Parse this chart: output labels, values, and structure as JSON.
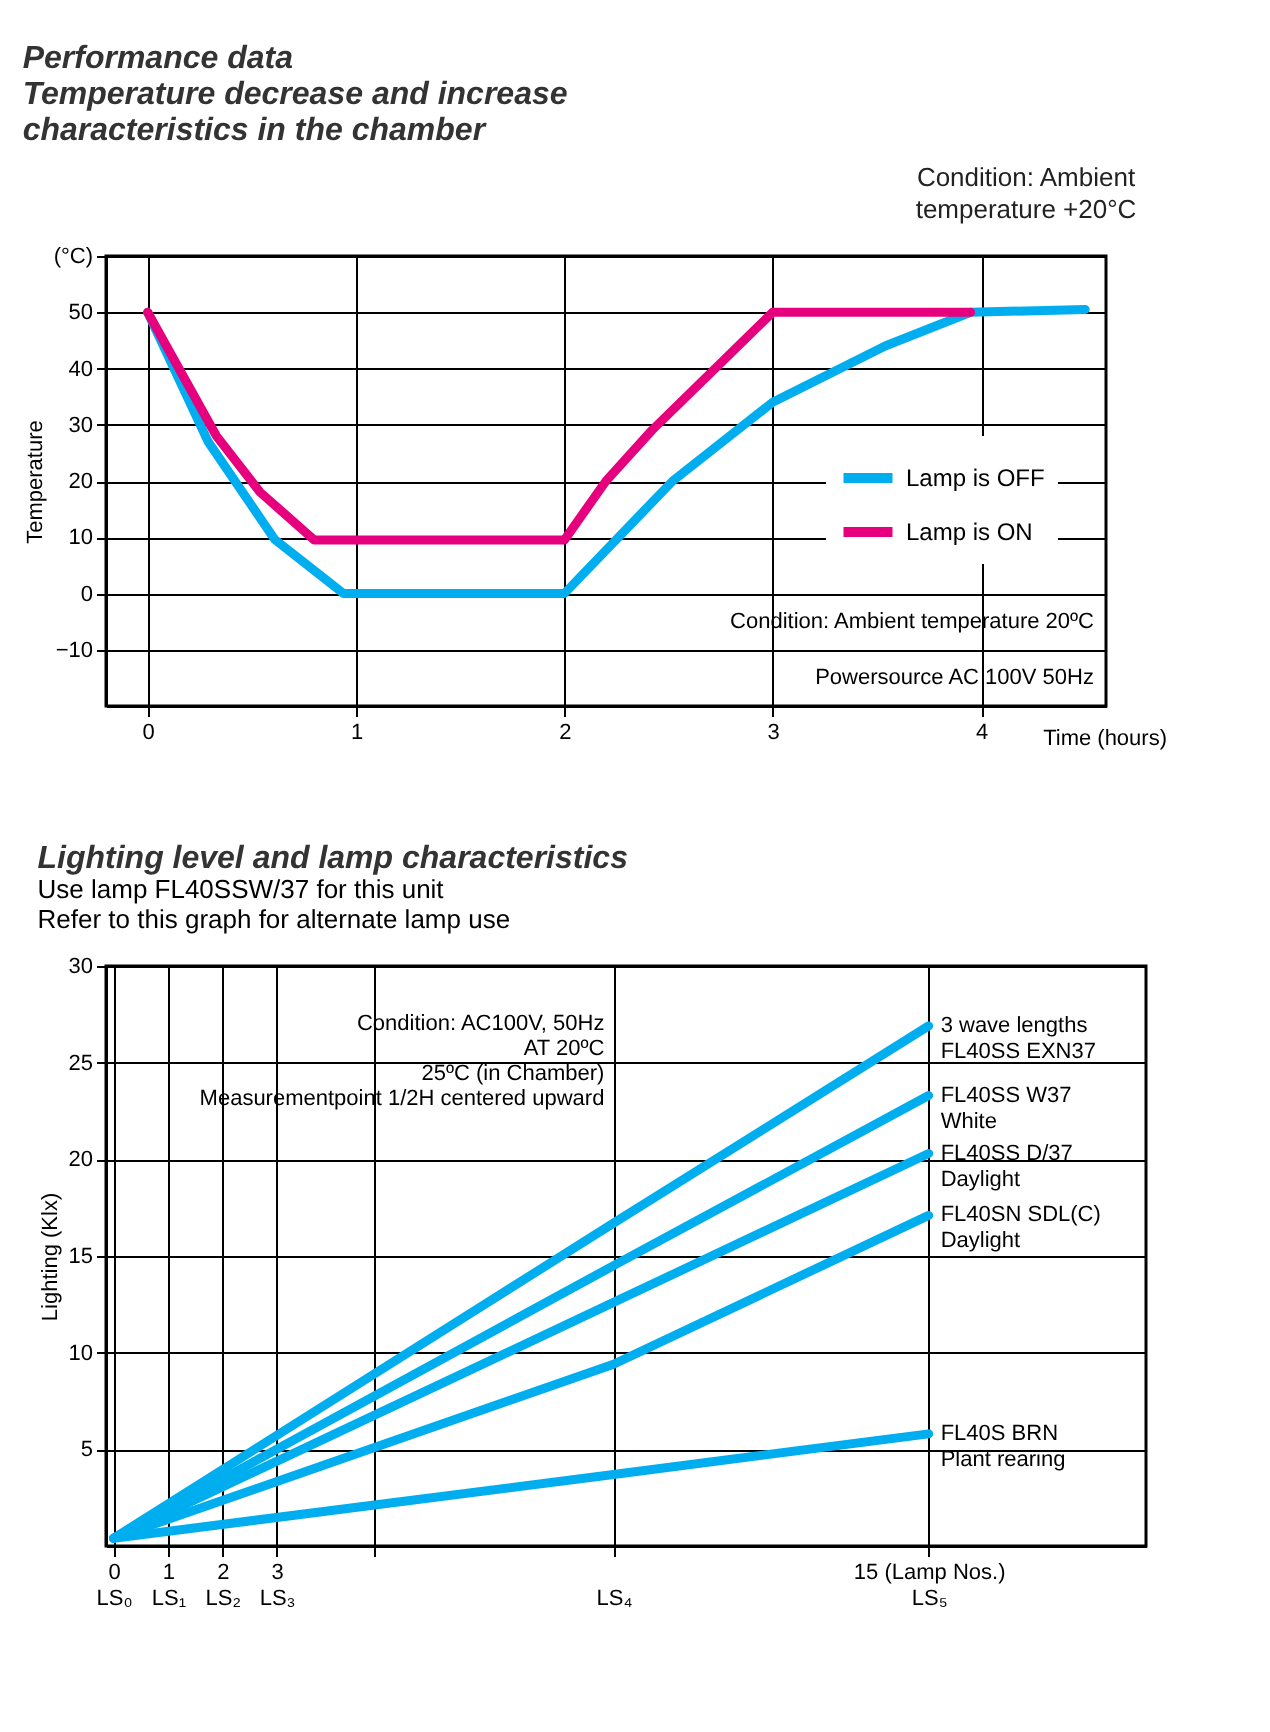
{
  "chart_data": [
    {
      "type": "line",
      "title": "Performance data\nTemperature decrease and increase\ncharacteristics in the chamber",
      "subtitle": "Condition: Ambient\ntemperature +20°C",
      "xlabel": "Time (hours)",
      "ylabel": "Temperature",
      "annotations": [
        "Condition: Ambient temperature 20ºC",
        "Powersource AC 100V 50Hz"
      ],
      "xlim": [
        -0.2,
        4.6
      ],
      "xticks": [
        0,
        1,
        2,
        3,
        4
      ],
      "ylim": [
        -20,
        60
      ],
      "yticks": [
        -10,
        0,
        10,
        20,
        30,
        40,
        50,
        {
          "value": 60,
          "label": "(°C)"
        }
      ],
      "grid": true,
      "legend": "right",
      "marker": "none",
      "line_style": "solid",
      "series": [
        {
          "name": "Lamp is OFF",
          "color": "#00aeef",
          "x": [
            0,
            0.29,
            0.61,
            0.94,
            2,
            2.52,
            3,
            3.54,
            3.95,
            4.5
          ],
          "values": [
            50,
            27,
            9.6,
            0,
            0,
            20,
            34,
            44,
            50,
            50.5
          ]
        },
        {
          "name": "Lamp is ON",
          "color": "#e6007e",
          "x": [
            0,
            0.33,
            0.54,
            0.8,
            2,
            2.2,
            2.42,
            3,
            3.95
          ],
          "values": [
            50,
            28,
            18,
            9.5,
            9.5,
            20,
            29,
            50,
            50
          ]
        }
      ]
    },
    {
      "type": "line",
      "title": "Lighting level and lamp characteristics",
      "subtitle": "Use lamp FL40SSW/37 for this unit\nRefer to this graph for alternate lamp use",
      "ylabel": "Lighting (Klx)",
      "annotations": [
        "Condition: AC100V, 50Hz\nAT 20ºC\n25ºC (in Chamber)\nMeasurementpoint 1/2H centered upward"
      ],
      "xlim": [
        -0.14,
        19
      ],
      "xticks": [
        {
          "value": 0,
          "label": "0\nLS₀"
        },
        {
          "value": 1,
          "label": "1\nLS₁"
        },
        {
          "value": 2,
          "label": "2\nLS₂"
        },
        {
          "value": 3,
          "label": "3\nLS₃"
        },
        {
          "value": 4.8,
          "label": null
        },
        {
          "value": 9.2,
          "label": "\nLS₄"
        },
        {
          "value": 15,
          "label": "15 (Lamp Nos.)\nLS₅"
        }
      ],
      "ylim": [
        0,
        30
      ],
      "yticks": [
        5,
        10,
        15,
        20,
        25,
        30
      ],
      "grid": true,
      "legend": false,
      "marker": "none",
      "line_style": "solid",
      "series": [
        {
          "name": "3 wave lengths\nFL40SS EXN37",
          "color": "#00aeef",
          "x": [
            0,
            9.2,
            15
          ],
          "values": [
            0.4,
            16.7,
            26.9
          ]
        },
        {
          "name": "FL40SS W37\nWhite",
          "color": "#00aeef",
          "x": [
            0,
            9.2,
            15
          ],
          "values": [
            0.4,
            14.5,
            23.3
          ]
        },
        {
          "name": "FL40SS D/37\nDaylight",
          "color": "#00aeef",
          "x": [
            0,
            9.2,
            15
          ],
          "values": [
            0.4,
            12.6,
            20.3
          ]
        },
        {
          "name": "FL40SN SDL(C)\nDaylight",
          "color": "#00aeef",
          "x": [
            0,
            9.2,
            15
          ],
          "values": [
            0.4,
            9.4,
            17.1
          ]
        },
        {
          "name": "FL40S BRN\nPlant rearing",
          "color": "#00aeef",
          "x": [
            0,
            9.2,
            15
          ],
          "values": [
            0.4,
            3.7,
            5.8
          ]
        }
      ]
    }
  ]
}
